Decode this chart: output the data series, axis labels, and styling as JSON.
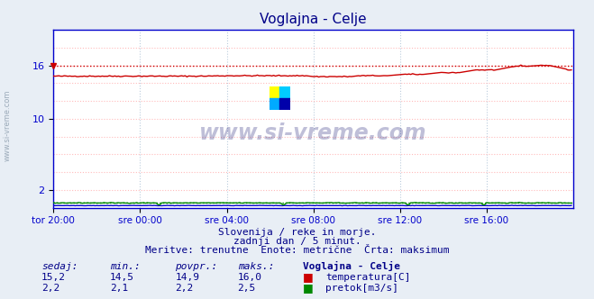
{
  "title": "Voglajna - Celje",
  "bg_color": "#e8eef5",
  "plot_bg_color": "#ffffff",
  "grid_color_h": "#ffaaaa",
  "grid_color_v": "#ccddee",
  "xlim": [
    0,
    288
  ],
  "ylim": [
    0,
    20
  ],
  "xtick_positions": [
    0,
    48,
    96,
    144,
    192,
    240
  ],
  "xtick_labels": [
    "tor 20:00",
    "sre 00:00",
    "sre 04:00",
    "sre 08:00",
    "sre 12:00",
    "sre 16:00"
  ],
  "ytick_positions": [
    2,
    10,
    16
  ],
  "ytick_labels": [
    "2",
    "10",
    "16"
  ],
  "temp_color": "#cc0000",
  "flow_color": "#008800",
  "level_color": "#0000cc",
  "temp_max": 16.0,
  "temp_min": 14.5,
  "flow_max_line": 0.625,
  "flow_line_val": 0.55,
  "level_line_val": 0.25,
  "subtitle1": "Slovenija / reke in morje.",
  "subtitle2": "zadnji dan / 5 minut.",
  "subtitle3": "Meritve: trenutne  Enote: metrične  Črta: maksimum",
  "legend_station": "Voglajna - Celje",
  "legend_temp": "temperatura[C]",
  "legend_flow": "pretok[m3/s]",
  "watermark": "www.si-vreme.com",
  "label_sedaj": "sedaj:",
  "label_min": "min.:",
  "label_povpr": "povpr.:",
  "label_maks": "maks.:",
  "val_sedaj_temp": "15,2",
  "val_min_temp": "14,5",
  "val_povpr_temp": "14,9",
  "val_maks_temp": "16,0",
  "val_sedaj_flow": "2,2",
  "val_min_flow": "2,1",
  "val_povpr_flow": "2,2",
  "val_maks_flow": "2,5",
  "axis_color": "#0000cc",
  "tick_color": "#0000cc",
  "title_color": "#000088",
  "text_color": "#000088"
}
